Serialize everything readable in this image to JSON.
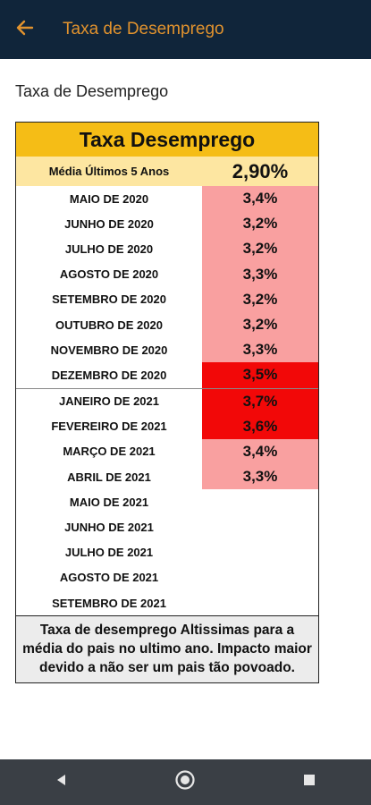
{
  "appbar": {
    "title": "Taxa de Desemprego"
  },
  "page": {
    "heading": "Taxa de Desemprego"
  },
  "table": {
    "title": "Taxa Desemprego",
    "avg_label": "Média Últimos 5 Anos",
    "avg_value": "2,90%",
    "rows": [
      {
        "month": "MAIO DE 2020",
        "rate": "3,4%"
      },
      {
        "month": "JUNHO DE 2020",
        "rate": "3,2%"
      },
      {
        "month": "JULHO DE 2020",
        "rate": "3,2%"
      },
      {
        "month": "AGOSTO DE 2020",
        "rate": "3,3%"
      },
      {
        "month": "SETEMBRO DE 2020",
        "rate": "3,2%"
      },
      {
        "month": "OUTUBRO DE 2020",
        "rate": "3,2%"
      },
      {
        "month": "NOVEMBRO DE 2020",
        "rate": "3,3%"
      },
      {
        "month": "DEZEMBRO DE 2020",
        "rate": "3,5%"
      },
      {
        "month": "JANEIRO DE 2021",
        "rate": "3,7%"
      },
      {
        "month": "FEVEREIRO DE 2021",
        "rate": "3,6%"
      },
      {
        "month": "MARÇO DE 2021",
        "rate": "3,4%"
      },
      {
        "month": "ABRIL DE 2021",
        "rate": "3,3%"
      },
      {
        "month": "MAIO DE 2021",
        "rate": ""
      },
      {
        "month": "JUNHO DE 2021",
        "rate": ""
      },
      {
        "month": "JULHO DE 2021",
        "rate": ""
      },
      {
        "month": "AGOSTO DE 2021",
        "rate": ""
      },
      {
        "month": "SETEMBRO DE 2021",
        "rate": ""
      }
    ],
    "note": "Taxa de desemprego Altissimas para a média do pais no ultimo ano. Impacto maior devido a não ser um pais tão povoado."
  },
  "colors": {
    "appbar_bg": "#10253a",
    "title_accent": "#e0922e",
    "header_yellow": "#f5bd16",
    "avg_row_bg": "#fde6a1",
    "rate_light_red": "#f9a0a0",
    "rate_dark_red": "#f20808",
    "navbar_bg": "#3a3f45"
  },
  "icons": {
    "back": "arrow-left-icon",
    "nav_back": "triangle-left-icon",
    "nav_home": "circle-home-icon",
    "nav_recents": "square-recents-icon"
  }
}
